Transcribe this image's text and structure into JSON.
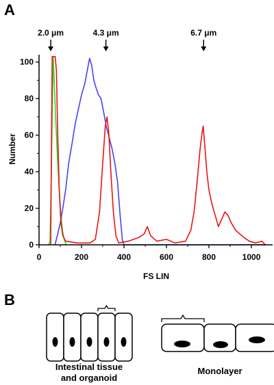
{
  "panels": {
    "a": "A",
    "b": "B"
  },
  "chart_data": {
    "type": "line",
    "xlabel": "FS LIN",
    "ylabel": "Number",
    "xlim": [
      0,
      1100
    ],
    "ylim": [
      0,
      104
    ],
    "xticks": [
      0,
      200,
      400,
      600,
      800,
      1000
    ],
    "yticks": [
      0,
      20,
      40,
      60,
      80,
      100
    ],
    "markers": [
      {
        "label": "2.0 μm",
        "x": 55
      },
      {
        "label": "4.3 μm",
        "x": 315
      },
      {
        "label": "6.7 μm",
        "x": 775
      }
    ],
    "series": [
      {
        "color": "#22dd22",
        "points": [
          [
            45,
            0
          ],
          [
            52,
            2
          ],
          [
            58,
            40
          ],
          [
            63,
            80
          ],
          [
            67,
            103
          ],
          [
            72,
            88
          ],
          [
            78,
            70
          ],
          [
            84,
            55
          ],
          [
            90,
            40
          ],
          [
            96,
            28
          ],
          [
            102,
            18
          ],
          [
            110,
            8
          ],
          [
            118,
            3
          ],
          [
            128,
            0
          ]
        ]
      },
      {
        "color": "#4444ee",
        "points": [
          [
            75,
            0
          ],
          [
            88,
            6
          ],
          [
            100,
            12
          ],
          [
            112,
            20
          ],
          [
            125,
            30
          ],
          [
            140,
            45
          ],
          [
            155,
            55
          ],
          [
            170,
            66
          ],
          [
            185,
            74
          ],
          [
            200,
            82
          ],
          [
            215,
            88
          ],
          [
            228,
            96
          ],
          [
            238,
            102
          ],
          [
            248,
            98
          ],
          [
            258,
            90
          ],
          [
            268,
            86
          ],
          [
            280,
            82
          ],
          [
            292,
            80
          ],
          [
            305,
            72
          ],
          [
            318,
            64
          ],
          [
            332,
            58
          ],
          [
            345,
            52
          ],
          [
            358,
            44
          ],
          [
            370,
            34
          ],
          [
            382,
            16
          ],
          [
            392,
            3
          ],
          [
            400,
            0
          ],
          [
            1070,
            0
          ]
        ]
      },
      {
        "color": "#ee1111",
        "points": [
          [
            55,
            0
          ],
          [
            62,
            103
          ],
          [
            70,
            103
          ],
          [
            76,
            103
          ],
          [
            82,
            95
          ],
          [
            88,
            60
          ],
          [
            95,
            30
          ],
          [
            103,
            12
          ],
          [
            112,
            5
          ],
          [
            125,
            2
          ],
          [
            180,
            1
          ],
          [
            240,
            1
          ],
          [
            265,
            3
          ],
          [
            285,
            18
          ],
          [
            300,
            45
          ],
          [
            312,
            65
          ],
          [
            320,
            70
          ],
          [
            328,
            62
          ],
          [
            338,
            40
          ],
          [
            350,
            18
          ],
          [
            362,
            5
          ],
          [
            375,
            1
          ],
          [
            420,
            2
          ],
          [
            470,
            4
          ],
          [
            495,
            6
          ],
          [
            510,
            10
          ],
          [
            525,
            5
          ],
          [
            555,
            2
          ],
          [
            600,
            3
          ],
          [
            640,
            1
          ],
          [
            690,
            2
          ],
          [
            715,
            8
          ],
          [
            730,
            18
          ],
          [
            745,
            35
          ],
          [
            758,
            52
          ],
          [
            766,
            60
          ],
          [
            773,
            65
          ],
          [
            780,
            55
          ],
          [
            790,
            40
          ],
          [
            800,
            30
          ],
          [
            815,
            22
          ],
          [
            830,
            16
          ],
          [
            845,
            10
          ],
          [
            860,
            14
          ],
          [
            875,
            18
          ],
          [
            890,
            16
          ],
          [
            905,
            12
          ],
          [
            925,
            8
          ],
          [
            945,
            6
          ],
          [
            965,
            4
          ],
          [
            990,
            2
          ],
          [
            1020,
            1
          ],
          [
            1050,
            2
          ],
          [
            1065,
            0
          ]
        ]
      }
    ]
  },
  "diagram": {
    "caption_left_line1": "Intestinal tissue",
    "caption_left_line2": "and organoid",
    "caption_right": "Monolayer"
  }
}
